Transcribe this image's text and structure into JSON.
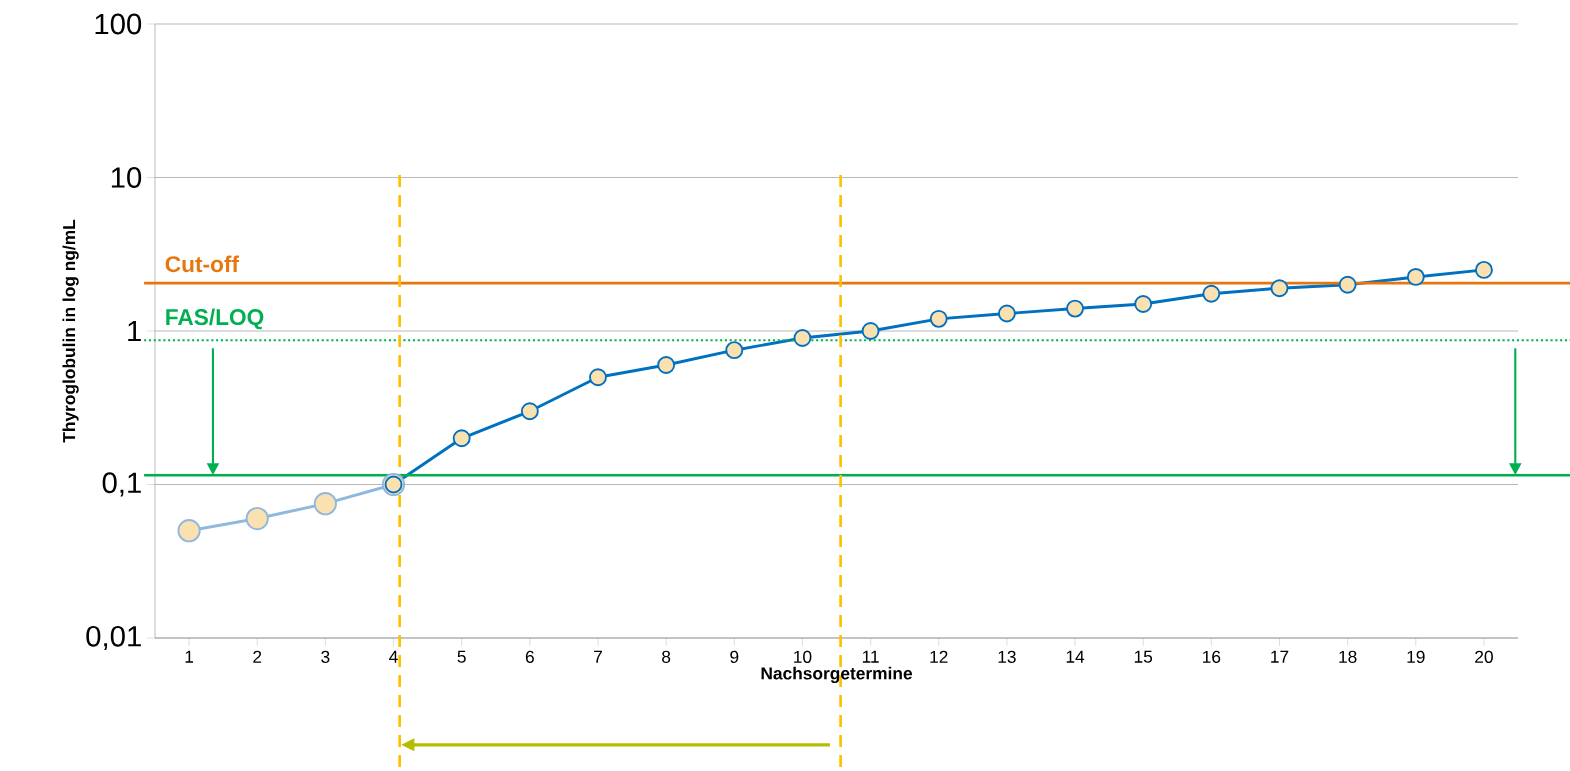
{
  "chart_data": {
    "type": "line",
    "xlabel": "Nachsorgetermine",
    "ylabel": "Thyroglobulin in log ng/mL",
    "xlim": [
      0.5,
      20.5
    ],
    "xticks": [
      1,
      2,
      3,
      4,
      5,
      6,
      7,
      8,
      9,
      10,
      11,
      12,
      13,
      14,
      15,
      16,
      17,
      18,
      19,
      20
    ],
    "ylim": [
      0.01,
      100
    ],
    "yticks": [
      {
        "value": 0.01,
        "label": "0,01"
      },
      {
        "value": 0.1,
        "label": "0,1"
      },
      1,
      10,
      100
    ],
    "log": true,
    "grid": "y",
    "marker": "circle",
    "series": [
      {
        "color": "#8fb8e0",
        "x": [
          1,
          2,
          3,
          4
        ],
        "values": [
          0.05,
          0.06,
          0.075,
          0.1
        ]
      },
      {
        "color": "#0070c0",
        "x": [
          4,
          5,
          6,
          7,
          8,
          9,
          10,
          11,
          12,
          13,
          14,
          15,
          16,
          17,
          18,
          19,
          20
        ],
        "values": [
          0.1,
          0.2,
          0.3,
          0.5,
          0.6,
          0.75,
          0.9,
          1.0,
          1.2,
          1.3,
          1.4,
          1.5,
          1.75,
          1.9,
          2.0,
          2.25,
          2.5
        ]
      }
    ],
    "ref_lines": [
      {
        "axis": "y",
        "value": 2.05,
        "label": "Cut-off",
        "color": "#e8760f",
        "line_style": "solid"
      },
      {
        "axis": "y",
        "value": 0.87,
        "label": "FAS/LOQ",
        "color": "#00b050",
        "line_style": "dotted"
      },
      {
        "axis": "y",
        "value": 0.115,
        "color": "#00b050",
        "line_style": "solid"
      },
      {
        "axis": "x",
        "value": 4.09,
        "color": "#ffc000",
        "line_style": "dashed"
      },
      {
        "axis": "x",
        "value": 10.56,
        "color": "#ffc000",
        "line_style": "dashed"
      }
    ]
  }
}
